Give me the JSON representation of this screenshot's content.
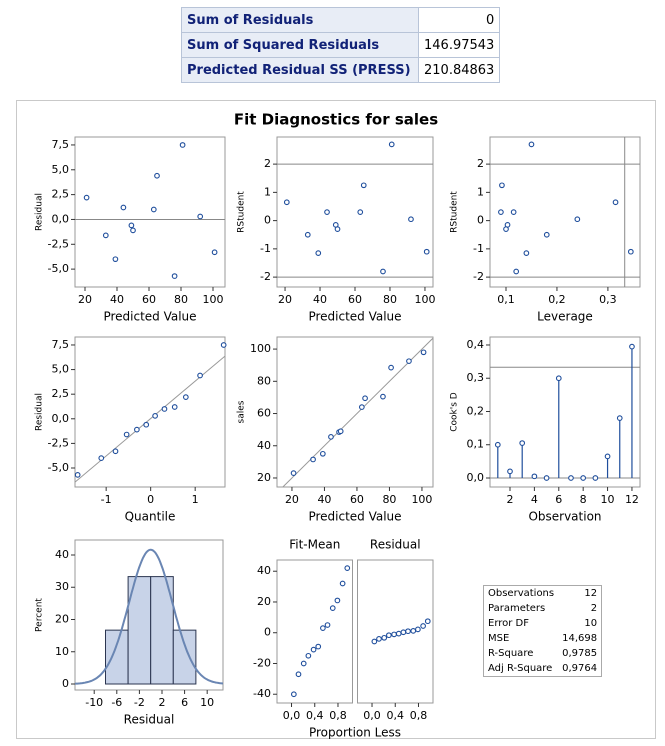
{
  "summary_table": {
    "rows": [
      [
        "Sum of Residuals",
        "0"
      ],
      [
        "Sum of Squared Residuals",
        "146.97543"
      ],
      [
        "Predicted Residual SS (PRESS)",
        "210.84863"
      ]
    ]
  },
  "title": "Fit Diagnostics for sales",
  "chart_data": [
    {
      "type": "scatter",
      "xlabel": "Predicted Value",
      "ylabel": "Residual",
      "color": "#1f4e9c",
      "x": [
        21,
        33,
        39,
        44,
        49,
        50,
        63,
        65,
        76,
        81,
        92,
        101
      ],
      "values": [
        2.2,
        -1.6,
        -4.0,
        1.2,
        -0.6,
        -1.1,
        1.0,
        4.4,
        -5.7,
        7.5,
        0.3,
        -3.3
      ],
      "xlim": [
        13.75,
        107.5
      ],
      "ylim": [
        -6.8,
        8.3
      ],
      "xticks": [
        20,
        40,
        60,
        80,
        100
      ],
      "yticks": [
        {
          "value": -5,
          "label": "-5,0"
        },
        {
          "value": -2.5,
          "label": "-2,5"
        },
        {
          "value": 0,
          "label": "0,0"
        },
        {
          "value": 2.5,
          "label": "2,5"
        },
        {
          "value": 5,
          "label": "5,0"
        },
        {
          "value": 7.5,
          "label": "7,5"
        }
      ],
      "hlines": [
        0
      ]
    },
    {
      "type": "scatter",
      "xlabel": "Predicted Value",
      "ylabel": "RStudent",
      "color": "#1f4e9c",
      "x": [
        21,
        33,
        39,
        44,
        49,
        50,
        63,
        65,
        76,
        81,
        92,
        101
      ],
      "values": [
        0.65,
        -0.5,
        -1.15,
        0.3,
        -0.15,
        -0.3,
        0.3,
        1.25,
        -1.8,
        2.7,
        0.05,
        -1.1
      ],
      "xlim": [
        15.4,
        104.6
      ],
      "ylim": [
        -2.35,
        2.96
      ],
      "xticks": [
        20,
        40,
        60,
        80,
        100
      ],
      "yticks": [
        -2,
        -1,
        0,
        1,
        2
      ],
      "hlines": [
        -2,
        2
      ]
    },
    {
      "type": "scatter",
      "xlabel": "Leverage",
      "ylabel": "RStudent",
      "color": "#1f4e9c",
      "x": [
        0.315,
        0.18,
        0.14,
        0.09,
        0.103,
        0.1,
        0.115,
        0.092,
        0.12,
        0.15,
        0.24,
        0.345
      ],
      "values": [
        0.65,
        -0.5,
        -1.15,
        0.3,
        -0.15,
        -0.3,
        0.3,
        1.25,
        -1.8,
        2.7,
        0.05,
        -1.1
      ],
      "xlim": [
        0.0686,
        0.363
      ],
      "ylim": [
        -2.35,
        2.96
      ],
      "xticks": [
        {
          "value": 0.1,
          "label": "0,1"
        },
        {
          "value": 0.2,
          "label": "0,2"
        },
        {
          "value": 0.3,
          "label": "0,3"
        }
      ],
      "yticks": [
        -2,
        -1,
        0,
        1,
        2
      ],
      "hlines": [
        -2,
        2
      ],
      "vlines": [
        0.333
      ]
    },
    {
      "type": "scatter",
      "xlabel": "Quantile",
      "ylabel": "Residual",
      "color": "#1f4e9c",
      "refline": "fit",
      "x": [
        -1.64,
        -1.11,
        -0.79,
        -0.54,
        -0.31,
        -0.1,
        0.1,
        0.31,
        0.54,
        0.79,
        1.11,
        1.64
      ],
      "values": [
        -5.7,
        -4.0,
        -3.3,
        -1.6,
        -1.1,
        -0.6,
        0.3,
        1.0,
        1.2,
        2.2,
        4.4,
        7.5
      ],
      "xlim": [
        -1.7,
        1.67
      ],
      "ylim": [
        -6.93,
        8.31
      ],
      "xticks": [
        -1,
        0,
        1
      ],
      "yticks": [
        {
          "value": -5,
          "label": "-5,0"
        },
        {
          "value": -2.5,
          "label": "-2,5"
        },
        {
          "value": 0,
          "label": "0,0"
        },
        {
          "value": 2.5,
          "label": "2,5"
        },
        {
          "value": 5,
          "label": "5,0"
        },
        {
          "value": 7.5,
          "label": "7,5"
        }
      ]
    },
    {
      "type": "scatter",
      "xlabel": "Predicted Value",
      "ylabel": "sales",
      "color": "#1f4e9c",
      "refline": "identity",
      "x": [
        21,
        33,
        39,
        44,
        49,
        50,
        63,
        65,
        76,
        81,
        92,
        101
      ],
      "values": [
        23,
        31.5,
        35,
        45.5,
        48.5,
        49,
        64,
        69.5,
        70.5,
        88.5,
        92.5,
        98
      ],
      "xlim": [
        10.8,
        106.8
      ],
      "ylim": [
        14.4,
        107.5
      ],
      "xticks": [
        20,
        40,
        60,
        80,
        100
      ],
      "yticks": [
        20,
        40,
        60,
        80,
        100
      ]
    },
    {
      "type": "needle",
      "xlabel": "Observation",
      "ylabel": "Cook's D",
      "color": "#1f4e9c",
      "x": [
        1,
        2,
        3,
        4,
        5,
        6,
        7,
        8,
        9,
        10,
        11,
        12
      ],
      "values": [
        0.1,
        0.02,
        0.105,
        0.005,
        0.0,
        0.3,
        0.0,
        0.0,
        0.0,
        0.065,
        0.18,
        0.395
      ],
      "xlim": [
        0.36,
        12.66
      ],
      "ylim": [
        -0.0271,
        0.424
      ],
      "xticks": [
        2,
        4,
        6,
        8,
        10,
        12
      ],
      "yticks": [
        {
          "value": 0,
          "label": "0,0"
        },
        {
          "value": 0.1,
          "label": "0,1"
        },
        {
          "value": 0.2,
          "label": "0,2"
        },
        {
          "value": 0.3,
          "label": "0,3"
        },
        {
          "value": 0.4,
          "label": "0,4"
        }
      ],
      "hlines": [
        0.333
      ]
    },
    {
      "type": "histogram",
      "xlabel": "Residual",
      "ylabel": "Percent",
      "color": "#c8d3e8",
      "bins": [
        -8,
        -4,
        0,
        4,
        8
      ],
      "values": [
        16.7,
        33.3,
        33.3,
        16.7
      ],
      "xlim": [
        -13.4,
        12.8
      ],
      "ylim": [
        -1.86,
        44.65
      ],
      "xticks": [
        -10,
        -6,
        -2,
        2,
        6,
        10
      ],
      "yticks": [
        0,
        10,
        20,
        30,
        40
      ]
    },
    {
      "type": "spread",
      "xlabel": "Proportion Less",
      "color": "#1f4e9c",
      "xlim": [
        -0.25,
        1.05
      ],
      "ylim": [
        -45.7,
        47.3
      ],
      "xticks": [
        {
          "value": 0,
          "label": "0,0"
        },
        {
          "value": 0.4,
          "label": "0,4"
        },
        {
          "value": 0.8,
          "label": "0,8"
        }
      ],
      "yticks": [
        -40,
        -20,
        0,
        20,
        40
      ],
      "panels": [
        {
          "title": "Fit-Mean",
          "x": [
            0.04,
            0.12,
            0.21,
            0.29,
            0.38,
            0.46,
            0.54,
            0.62,
            0.71,
            0.79,
            0.88,
            0.96
          ],
          "values": [
            -40,
            -27,
            -20,
            -15,
            -11,
            -9,
            3,
            5,
            16,
            21,
            32,
            42
          ]
        },
        {
          "title": "Residual",
          "x": [
            0.04,
            0.12,
            0.21,
            0.29,
            0.38,
            0.46,
            0.54,
            0.62,
            0.71,
            0.79,
            0.88,
            0.96
          ],
          "values": [
            -5.7,
            -4.0,
            -3.3,
            -1.6,
            -1.1,
            -0.6,
            0.3,
            1.0,
            1.2,
            2.2,
            4.4,
            7.5
          ]
        }
      ]
    }
  ],
  "fit_statistics": {
    "rows": [
      [
        "Observations",
        "12"
      ],
      [
        "Parameters",
        "2"
      ],
      [
        "Error DF",
        "10"
      ],
      [
        "MSE",
        "14,698"
      ],
      [
        "R-Square",
        "0,9785"
      ],
      [
        "Adj R-Square",
        "0,9764"
      ]
    ]
  }
}
